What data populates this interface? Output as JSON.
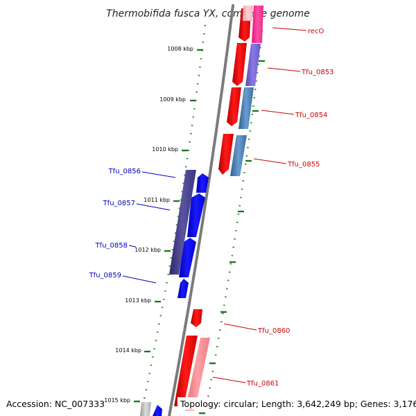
{
  "title": "Thermobifida fusca YX, complete genome",
  "footer": {
    "accession": "Accession: NC_007333",
    "summary": "Topology: circular; Length: 3,642,249 bp; Genes: 3,176"
  },
  "ticks": [
    "1008 kbp",
    "1009 kbp",
    "1010 kbp",
    "1011 kbp",
    "1012 kbp",
    "1013 kbp",
    "1014 kbp",
    "1015 kbp"
  ],
  "genes": {
    "forward": [
      "recO",
      "Tfu_0853",
      "Tfu_0854",
      "Tfu_0855",
      "Tfu_0860",
      "Tfu_0861"
    ],
    "reverse": [
      "Tfu_0856",
      "Tfu_0857",
      "Tfu_0858",
      "Tfu_0859"
    ]
  },
  "colors": {
    "forward_cds": "#ff0000",
    "reverse_cds": "#0000ff",
    "forward_label": "#cc0000",
    "reverse_label": "#0000bb",
    "backbone": "#808080",
    "tick": "#1a7a1a"
  }
}
